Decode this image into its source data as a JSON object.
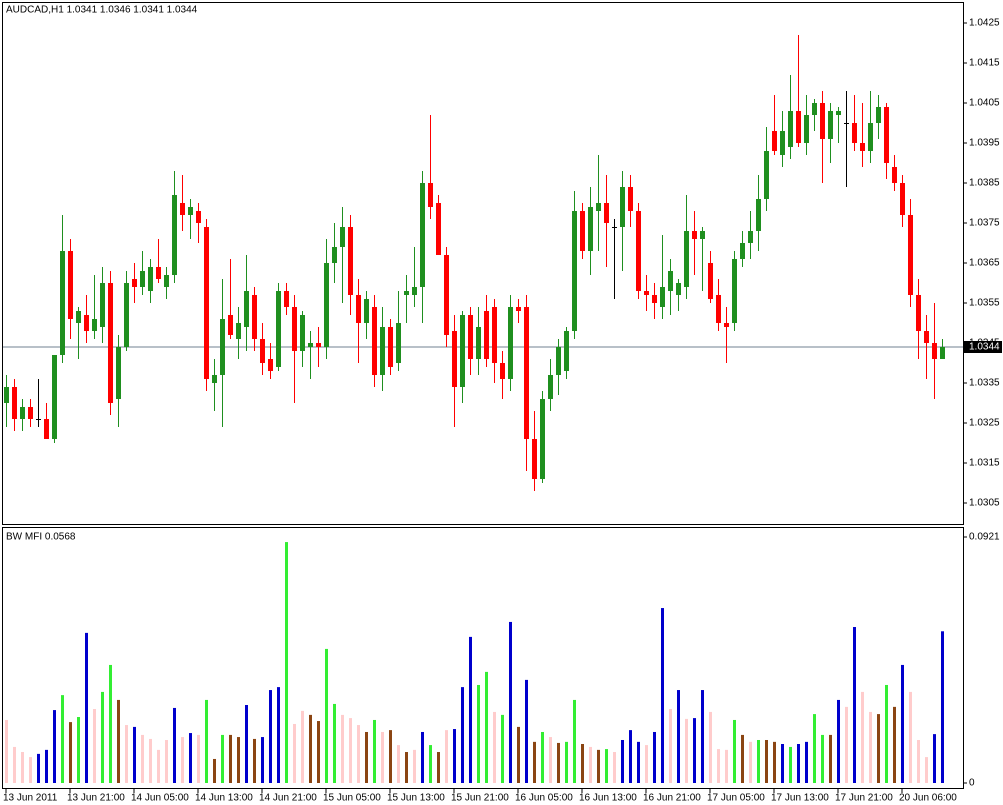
{
  "chart_data": [
    {
      "type": "candlestick",
      "title": "AUDCAD,H1  1.0341 1.0346 1.0341 1.0344",
      "categories": [
        "13 Jun 2011",
        null,
        null,
        null,
        null,
        null,
        null,
        null,
        "13 Jun 21:00",
        null,
        null,
        null,
        null,
        null,
        null,
        null,
        "14 Jun 05:00",
        null,
        null,
        null,
        null,
        null,
        null,
        null,
        "14 Jun 13:00",
        null,
        null,
        null,
        null,
        null,
        null,
        null,
        "14 Jun 21:00",
        null,
        null,
        null,
        null,
        null,
        null,
        null,
        "15 Jun 05:00",
        null,
        null,
        null,
        null,
        null,
        null,
        null,
        "15 Jun 13:00",
        null,
        null,
        null,
        null,
        null,
        null,
        null,
        "15 Jun 21:00",
        null,
        null,
        null,
        null,
        null,
        null,
        null,
        "16 Jun 05:00",
        null,
        null,
        null,
        null,
        null,
        null,
        null,
        "16 Jun 13:00",
        null,
        null,
        null,
        null,
        null,
        null,
        null,
        "16 Jun 21:00",
        null,
        null,
        null,
        null,
        null,
        null,
        null,
        "17 Jun 05:00",
        null,
        null,
        null,
        null,
        null,
        null,
        null,
        "17 Jun 13:00",
        null,
        null,
        null,
        null,
        null,
        null,
        null,
        "17 Jun 21:00",
        null,
        null,
        null,
        null,
        null,
        null,
        null,
        "20 Jun 06:00",
        null,
        null,
        null,
        null,
        null
      ],
      "ohlc": [
        [
          1.033,
          1.0337,
          1.0324,
          1.0334
        ],
        [
          1.0334,
          1.0336,
          1.0323,
          1.0326
        ],
        [
          1.0326,
          1.0331,
          1.0323,
          1.0329
        ],
        [
          1.0329,
          1.0331,
          1.0324,
          1.0326
        ],
        [
          1.0326,
          1.0336,
          1.0324,
          1.0326
        ],
        [
          1.0326,
          1.033,
          1.0321,
          1.0321
        ],
        [
          1.0321,
          1.0342,
          1.032,
          1.0342
        ],
        [
          1.0342,
          1.0377,
          1.034,
          1.0368
        ],
        [
          1.0368,
          1.0371,
          1.0346,
          1.0351
        ],
        [
          1.035,
          1.0354,
          1.0341,
          1.0353
        ],
        [
          1.0352,
          1.0357,
          1.0345,
          1.0348
        ],
        [
          1.0348,
          1.0362,
          1.0346,
          1.0351
        ],
        [
          1.0349,
          1.0364,
          1.0345,
          1.036
        ],
        [
          1.036,
          1.0363,
          1.0327,
          1.033
        ],
        [
          1.0331,
          1.0347,
          1.0324,
          1.0344
        ],
        [
          1.0344,
          1.0363,
          1.0343,
          1.036
        ],
        [
          1.0361,
          1.0365,
          1.0355,
          1.0359
        ],
        [
          1.0359,
          1.0368,
          1.0357,
          1.0363
        ],
        [
          1.0358,
          1.0366,
          1.0355,
          1.0364
        ],
        [
          1.0364,
          1.0371,
          1.036,
          1.0361
        ],
        [
          1.0359,
          1.0364,
          1.0356,
          1.0362
        ],
        [
          1.0362,
          1.0388,
          1.036,
          1.0382
        ],
        [
          1.038,
          1.0387,
          1.0373,
          1.0377
        ],
        [
          1.0377,
          1.0381,
          1.0371,
          1.0379
        ],
        [
          1.0378,
          1.038,
          1.037,
          1.0375
        ],
        [
          1.0374,
          1.0376,
          1.0333,
          1.0336
        ],
        [
          1.0335,
          1.0341,
          1.0328,
          1.0337
        ],
        [
          1.0337,
          1.0361,
          1.0324,
          1.0351
        ],
        [
          1.0352,
          1.0366,
          1.0346,
          1.0347
        ],
        [
          1.0346,
          1.0354,
          1.0341,
          1.035
        ],
        [
          1.0349,
          1.0367,
          1.0343,
          1.0358
        ],
        [
          1.0357,
          1.0359,
          1.0343,
          1.0346
        ],
        [
          1.0346,
          1.035,
          1.0337,
          1.034
        ],
        [
          1.0341,
          1.0345,
          1.0336,
          1.0338
        ],
        [
          1.0339,
          1.036,
          1.0338,
          1.0358
        ],
        [
          1.0358,
          1.036,
          1.0352,
          1.0354
        ],
        [
          1.0354,
          1.0357,
          1.033,
          1.0343
        ],
        [
          1.0343,
          1.0353,
          1.0339,
          1.0352
        ],
        [
          1.0344,
          1.0348,
          1.0336,
          1.0345
        ],
        [
          1.0345,
          1.0349,
          1.0339,
          1.0344
        ],
        [
          1.0344,
          1.0371,
          1.0341,
          1.0365
        ],
        [
          1.0365,
          1.0375,
          1.036,
          1.0369
        ],
        [
          1.0369,
          1.0379,
          1.0355,
          1.0374
        ],
        [
          1.0374,
          1.0377,
          1.0352,
          1.0357
        ],
        [
          1.0357,
          1.0361,
          1.034,
          1.035
        ],
        [
          1.035,
          1.0358,
          1.0346,
          1.0356
        ],
        [
          1.0354,
          1.0357,
          1.0334,
          1.0337
        ],
        [
          1.0337,
          1.0354,
          1.0333,
          1.0349
        ],
        [
          1.0349,
          1.0351,
          1.0337,
          1.0339
        ],
        [
          1.034,
          1.0358,
          1.0338,
          1.035
        ],
        [
          1.0357,
          1.0362,
          1.035,
          1.0358
        ],
        [
          1.0357,
          1.0369,
          1.0354,
          1.0359
        ],
        [
          1.0359,
          1.0388,
          1.035,
          1.0385
        ],
        [
          1.0385,
          1.0402,
          1.0376,
          1.0379
        ],
        [
          1.038,
          1.0382,
          1.0367,
          1.0367
        ],
        [
          1.0367,
          1.0369,
          1.0344,
          1.0347
        ],
        [
          1.0348,
          1.0352,
          1.0324,
          1.0334
        ],
        [
          1.0334,
          1.0353,
          1.033,
          1.0352
        ],
        [
          1.0352,
          1.0354,
          1.0337,
          1.0341
        ],
        [
          1.0341,
          1.0354,
          1.0337,
          1.0349
        ],
        [
          1.0353,
          1.0357,
          1.0339,
          1.0341
        ],
        [
          1.0354,
          1.0356,
          1.0335,
          1.034
        ],
        [
          1.034,
          1.0343,
          1.0331,
          1.0336
        ],
        [
          1.0336,
          1.0357,
          1.0333,
          1.0354
        ],
        [
          1.0354,
          1.0356,
          1.035,
          1.0353
        ],
        [
          1.0354,
          1.0357,
          1.0313,
          1.0321
        ],
        [
          1.0321,
          1.0328,
          1.0308,
          1.0311
        ],
        [
          1.0311,
          1.0333,
          1.031,
          1.0331
        ],
        [
          1.0331,
          1.0341,
          1.0328,
          1.0337
        ],
        [
          1.0337,
          1.0346,
          1.0332,
          1.0344
        ],
        [
          1.0338,
          1.0349,
          1.0336,
          1.0348
        ],
        [
          1.0348,
          1.0383,
          1.0346,
          1.0378
        ],
        [
          1.0378,
          1.038,
          1.0366,
          1.0368
        ],
        [
          1.0368,
          1.0384,
          1.0362,
          1.0379
        ],
        [
          1.0378,
          1.0392,
          1.0368,
          1.038
        ],
        [
          1.038,
          1.0387,
          1.0364,
          1.0375
        ],
        [
          1.0374,
          1.0376,
          1.0356,
          1.0374
        ],
        [
          1.0374,
          1.0388,
          1.0363,
          1.0384
        ],
        [
          1.0384,
          1.0387,
          1.0374,
          1.0378
        ],
        [
          1.0378,
          1.038,
          1.0356,
          1.0358
        ],
        [
          1.0358,
          1.0362,
          1.0353,
          1.0357
        ],
        [
          1.0357,
          1.036,
          1.0351,
          1.0355
        ],
        [
          1.0354,
          1.0372,
          1.0351,
          1.0359
        ],
        [
          1.0358,
          1.0366,
          1.0352,
          1.0363
        ],
        [
          1.0357,
          1.0361,
          1.0353,
          1.036
        ],
        [
          1.0359,
          1.0382,
          1.0356,
          1.0373
        ],
        [
          1.0373,
          1.0378,
          1.0362,
          1.0371
        ],
        [
          1.0371,
          1.0374,
          1.0358,
          1.0373
        ],
        [
          1.0365,
          1.0368,
          1.0355,
          1.0356
        ],
        [
          1.0357,
          1.0361,
          1.0348,
          1.035
        ],
        [
          1.035,
          1.0354,
          1.034,
          1.0349
        ],
        [
          1.035,
          1.0368,
          1.0348,
          1.0366
        ],
        [
          1.0366,
          1.0373,
          1.0364,
          1.037
        ],
        [
          1.037,
          1.0378,
          1.0366,
          1.0373
        ],
        [
          1.0373,
          1.0387,
          1.0368,
          1.0381
        ],
        [
          1.0381,
          1.0399,
          1.0378,
          1.0393
        ],
        [
          1.0398,
          1.0407,
          1.0392,
          1.0393
        ],
        [
          1.0392,
          1.0403,
          1.0389,
          1.0398
        ],
        [
          1.0394,
          1.0412,
          1.0391,
          1.0403
        ],
        [
          1.0403,
          1.0422,
          1.0394,
          1.0395
        ],
        [
          1.0395,
          1.0407,
          1.0392,
          1.0402
        ],
        [
          1.0402,
          1.0406,
          1.0398,
          1.0405
        ],
        [
          1.0405,
          1.0408,
          1.0385,
          1.0396
        ],
        [
          1.0396,
          1.0405,
          1.039,
          1.0403
        ],
        [
          1.0402,
          1.0404,
          1.0395,
          1.0403
        ],
        [
          1.04,
          1.0408,
          1.0384,
          1.04
        ],
        [
          1.04,
          1.0407,
          1.0393,
          1.0395
        ],
        [
          1.0395,
          1.0405,
          1.0389,
          1.0393
        ],
        [
          1.0393,
          1.0408,
          1.039,
          1.04
        ],
        [
          1.04,
          1.0407,
          1.0396,
          1.0404
        ],
        [
          1.0404,
          1.0405,
          1.0386,
          1.039
        ],
        [
          1.0389,
          1.0392,
          1.0383,
          1.0385
        ],
        [
          1.0385,
          1.0387,
          1.0374,
          1.0377
        ],
        [
          1.0377,
          1.0381,
          1.0354,
          1.0357
        ],
        [
          1.0357,
          1.0361,
          1.0341,
          1.0348
        ],
        [
          1.0348,
          1.0352,
          1.0336,
          1.0345
        ],
        [
          1.0345,
          1.0355,
          1.0331,
          1.0341
        ],
        [
          1.0341,
          1.0346,
          1.0341,
          1.0344
        ]
      ],
      "up_color": "#1f8f1f",
      "down_color": "#ff0000",
      "doji_color": "#000000",
      "ylim": [
        1.03,
        1.043
      ],
      "yticks": [
        1.0425,
        1.0415,
        1.0405,
        1.0395,
        1.0385,
        1.0375,
        1.0365,
        1.0355,
        1.0345,
        1.0335,
        1.0325,
        1.0315,
        1.0305
      ],
      "last_price": 1.0344,
      "last_price_line_color": "#708090"
    },
    {
      "type": "histogram_bars",
      "title": "BW MFI 0.0568",
      "values": [
        0.0236,
        0.0135,
        0.0116,
        0.0097,
        0.0109,
        0.0124,
        0.0273,
        0.0329,
        0.0228,
        0.0247,
        0.0562,
        0.0277,
        0.0341,
        0.0442,
        0.0311,
        0.0217,
        0.021,
        0.018,
        0.0165,
        0.0124,
        0.0161,
        0.0281,
        0.0172,
        0.0187,
        0.018,
        0.0311,
        0.009,
        0.018,
        0.018,
        0.0172,
        0.0292,
        0.0165,
        0.0172,
        0.0348,
        0.0359,
        0.0902,
        0.0221,
        0.027,
        0.0255,
        0.0232,
        0.0502,
        0.0296,
        0.0255,
        0.0243,
        0.0217,
        0.0191,
        0.0236,
        0.0191,
        0.0198,
        0.0142,
        0.0116,
        0.0124,
        0.0191,
        0.0142,
        0.0116,
        0.0198,
        0.0202,
        0.0359,
        0.0547,
        0.0367,
        0.0416,
        0.0266,
        0.0255,
        0.0603,
        0.021,
        0.0386,
        0.0154,
        0.0191,
        0.0172,
        0.015,
        0.0154,
        0.0311,
        0.0146,
        0.0135,
        0.0124,
        0.0127,
        0.0116,
        0.0161,
        0.0198,
        0.0154,
        0.0142,
        0.0191,
        0.0655,
        0.0277,
        0.0348,
        0.024,
        0.0243,
        0.0348,
        0.0266,
        0.0127,
        0.0124,
        0.0236,
        0.018,
        0.0154,
        0.0161,
        0.0161,
        0.0154,
        0.0146,
        0.0135,
        0.0146,
        0.0154,
        0.0258,
        0.018,
        0.018,
        0.0311,
        0.0285,
        0.0584,
        0.0341,
        0.0266,
        0.0258,
        0.0367,
        0.0285,
        0.0442,
        0.0341,
        0.0161,
        0.0097,
        0.0183,
        0.0568
      ],
      "colors": [
        "#fcc",
        "#fcc",
        "#fcc",
        "#fcc",
        "#00c",
        "#00c",
        "#00c",
        "#3e3",
        "#8b4513",
        "#3e3",
        "#00c",
        "#fcc",
        "#3e3",
        "#3e3",
        "#8b4513",
        "#fcc",
        "#00c",
        "#fcc",
        "#fcc",
        "#fcc",
        "#fcc",
        "#00c",
        "#fcc",
        "#00c",
        "#fcc",
        "#3e3",
        "#8b4513",
        "#3e3",
        "#8b4513",
        "#8b4513",
        "#00c",
        "#8b4513",
        "#00c",
        "#00c",
        "#00c",
        "#3e3",
        "#fcc",
        "#fcc",
        "#8b4513",
        "#8b4513",
        "#3e3",
        "#3e3",
        "#fcc",
        "#fcc",
        "#fcc",
        "#8b4513",
        "#3e3",
        "#fcc",
        "#8b4513",
        "#fcc",
        "#8b4513",
        "#fcc",
        "#00c",
        "#3e3",
        "#8b4513",
        "#fcc",
        "#00c",
        "#00c",
        "#00c",
        "#3e3",
        "#3e3",
        "#fcc",
        "#3e3",
        "#00c",
        "#8b4513",
        "#00c",
        "#8b4513",
        "#3e3",
        "#fcc",
        "#8b4513",
        "#3e3",
        "#3e3",
        "#8b4513",
        "#fcc",
        "#8b4513",
        "#3e3",
        "#fcc",
        "#00c",
        "#00c",
        "#00c",
        "#fcc",
        "#00c",
        "#00c",
        "#fcc",
        "#00c",
        "#fcc",
        "#00c",
        "#00c",
        "#fcc",
        "#fcc",
        "#fcc",
        "#3e3",
        "#8b4513",
        "#fcc",
        "#3e3",
        "#8b4513",
        "#8b4513",
        "#00c",
        "#3e3",
        "#00c",
        "#00c",
        "#3e3",
        "#3e3",
        "#8b4513",
        "#00c",
        "#fcc",
        "#00c",
        "#fcc",
        "#fcc",
        "#8b4513",
        "#3e3",
        "#8b4513",
        "#00c",
        "#fcc",
        "#fcc",
        "#fcc",
        "#00c",
        "#00c"
      ],
      "ylim": [
        0,
        0.0921
      ],
      "yticks": [
        0.0921,
        0
      ]
    }
  ]
}
